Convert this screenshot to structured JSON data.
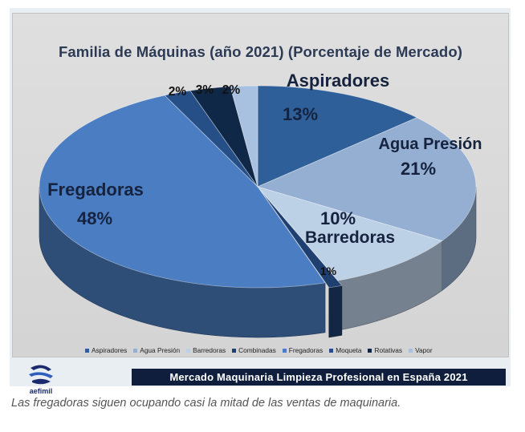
{
  "chart_data": {
    "type": "pie",
    "title": "Familia de Máquinas (año 2021) (Porcentaje  de Mercado)",
    "categories": [
      "Aspiradores",
      "Agua Presión",
      "Barredoras",
      "Combinadas",
      "Fregadoras",
      "Moqueta",
      "Rotativas",
      "Vapor"
    ],
    "values": [
      13,
      21,
      10,
      1,
      48,
      2,
      3,
      2
    ],
    "value_labels": [
      "13%",
      "21%",
      "10%",
      "1%",
      "48%",
      "2%",
      "3%",
      "2%"
    ],
    "legend_position": "bottom",
    "colors": [
      "#2e5f98",
      "#94afd2",
      "#bcd0e6",
      "#1e3f70",
      "#4a7dc2",
      "#254f86",
      "#0f2848",
      "#a9c1e1"
    ]
  },
  "logo": {
    "text": "aefimil"
  },
  "banner": {
    "text": "Mercado Maquinaria Limpieza Profesional en España 2021"
  },
  "caption": {
    "text": "Las fregadoras siguen ocupando casi la mitad de las ventas de maquinaria."
  }
}
